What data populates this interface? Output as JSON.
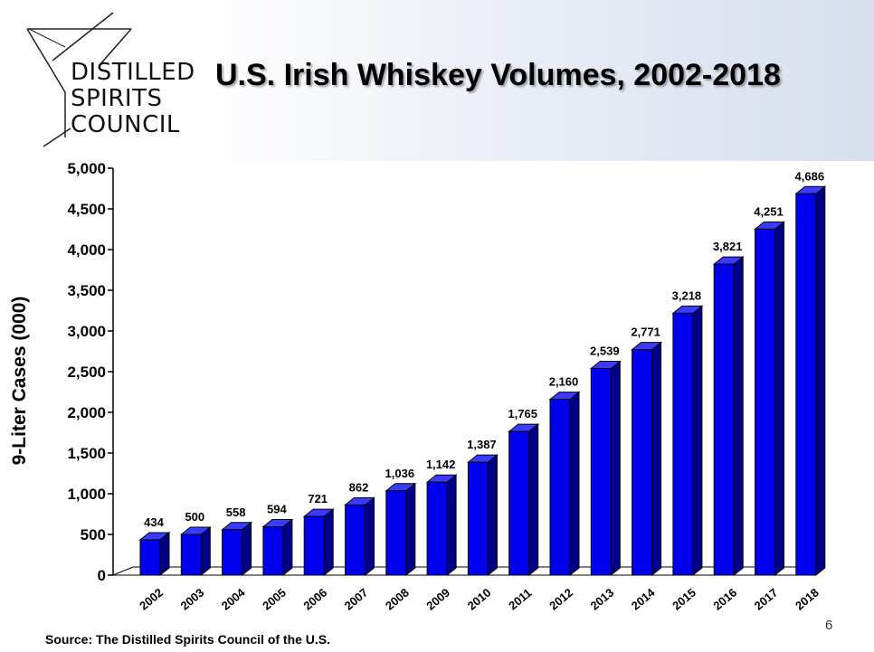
{
  "logo": {
    "lines": [
      "DISTILLED",
      "SPIRITS",
      "COUNCIL"
    ],
    "icon": "martini-glass-icon"
  },
  "title": "U.S. Irish Whiskey Volumes, 2002-2018",
  "source": "Source:  The Distilled Spirits Council of the U.S.",
  "page_number": "6",
  "colors": {
    "bar_front": "#0000ee",
    "bar_side": "#000088",
    "bar_top": "#3b3bff"
  },
  "chart_data": {
    "type": "bar",
    "ylabel": "9-Liter Cases (000)",
    "xlabel": "",
    "ylim": [
      0,
      5000
    ],
    "yticks": [
      "0",
      "500",
      "1,000",
      "1,500",
      "2,000",
      "2,500",
      "3,000",
      "3,500",
      "4,000",
      "4,500",
      "5,000"
    ],
    "categories": [
      "2002",
      "2003",
      "2004",
      "2005",
      "2006",
      "2007",
      "2008",
      "2009",
      "2010",
      "2011",
      "2012",
      "2013",
      "2014",
      "2015",
      "2016",
      "2017",
      "2018"
    ],
    "values": [
      434,
      500,
      558,
      594,
      721,
      862,
      1036,
      1142,
      1387,
      1765,
      2160,
      2539,
      2771,
      3218,
      3821,
      4251,
      4686
    ],
    "value_labels": [
      "434",
      "500",
      "558",
      "594",
      "721",
      "862",
      "1,036",
      "1,142",
      "1,387",
      "1,765",
      "2,160",
      "2,539",
      "2,771",
      "3,218",
      "3,821",
      "4,251",
      "4,686"
    ],
    "grid": false,
    "legend": "none",
    "style": "3d"
  }
}
